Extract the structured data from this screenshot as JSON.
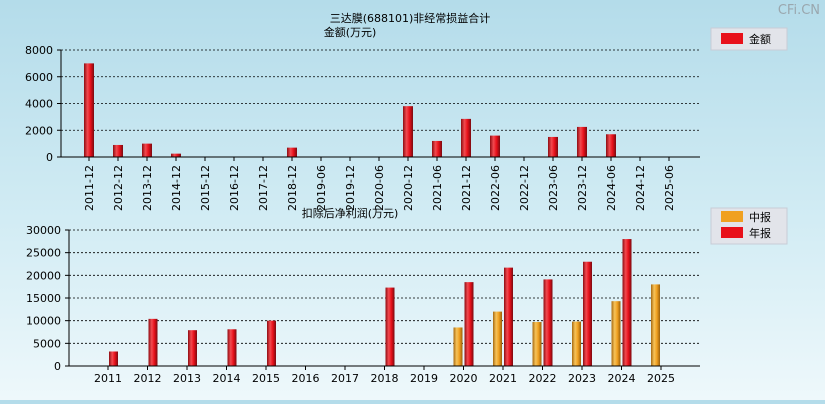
{
  "watermark": "CFi.CN",
  "chart_data": [
    {
      "type": "bar",
      "title": "三达膜(688101)非经常损益合计",
      "ylabel": "金额(万元)",
      "ylim": [
        0,
        8000
      ],
      "yticks": [
        0,
        2000,
        4000,
        6000,
        8000
      ],
      "grid": true,
      "legend_position": "top-right",
      "categories": [
        "2011-12",
        "2012-12",
        "2013-12",
        "2014-12",
        "2015-12",
        "2016-12",
        "2017-12",
        "2018-12",
        "2019-06",
        "2019-12",
        "2020-06",
        "2020-12",
        "2021-06",
        "2021-12",
        "2022-06",
        "2022-12",
        "2023-06",
        "2023-12",
        "2024-06",
        "2024-12",
        "2025-06"
      ],
      "series": [
        {
          "name": "金额",
          "color": "#e8101a",
          "values": [
            7000,
            900,
            1000,
            250,
            null,
            null,
            null,
            700,
            null,
            null,
            null,
            3800,
            1200,
            2850,
            1600,
            null,
            1500,
            2250,
            1700,
            null,
            null
          ]
        }
      ]
    },
    {
      "type": "bar",
      "title": "扣除后净利润(万元)",
      "ylim": [
        0,
        30000
      ],
      "yticks": [
        0,
        5000,
        10000,
        15000,
        20000,
        25000,
        30000
      ],
      "grid": true,
      "legend_position": "top-right",
      "categories": [
        "2011",
        "2012",
        "2013",
        "2014",
        "2015",
        "2016",
        "2017",
        "2018",
        "2019",
        "2020",
        "2021",
        "2022",
        "2023",
        "2024",
        "2025"
      ],
      "series": [
        {
          "name": "中报",
          "color": "#f0a020",
          "values": [
            null,
            null,
            null,
            null,
            null,
            null,
            null,
            null,
            null,
            8500,
            12000,
            9700,
            9800,
            14300,
            18000
          ]
        },
        {
          "name": "年报",
          "color": "#e8101a",
          "values": [
            3200,
            10400,
            7900,
            8100,
            10000,
            null,
            null,
            17300,
            null,
            18500,
            21700,
            19100,
            23000,
            28000,
            null
          ]
        }
      ]
    }
  ]
}
